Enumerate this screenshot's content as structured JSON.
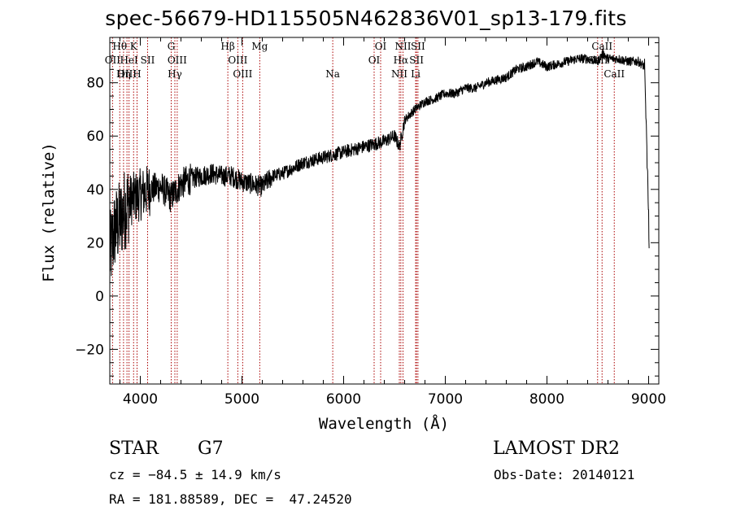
{
  "title": "spec-56679-HD115505N462836V01_sp13-179.fits",
  "footer": {
    "class_label": "STAR",
    "subclass": "G7",
    "survey": "LAMOST DR2",
    "cz": "cz = −84.5 ± 14.9 km/s",
    "obs_date": "Obs-Date: 20140121",
    "coords": "RA = 181.88589, DEC =  47.24520"
  },
  "chart_data": {
    "type": "line",
    "xlabel": "Wavelength (Å)",
    "ylabel": "Flux (relative)",
    "xlim": [
      3700,
      9100
    ],
    "ylim": [
      -33,
      97
    ],
    "x_ticks": [
      4000,
      5000,
      6000,
      7000,
      8000,
      9000
    ],
    "y_ticks": [
      -20,
      0,
      20,
      40,
      60,
      80
    ],
    "grid": false,
    "line_color": "#000000",
    "marker_color": "#aa0000",
    "spectrum_anchors": [
      [
        3700,
        15
      ],
      [
        3750,
        25
      ],
      [
        3800,
        28
      ],
      [
        3850,
        33
      ],
      [
        3900,
        36
      ],
      [
        3950,
        37
      ],
      [
        4000,
        38
      ],
      [
        4100,
        40
      ],
      [
        4200,
        41
      ],
      [
        4300,
        37
      ],
      [
        4400,
        42
      ],
      [
        4500,
        44
      ],
      [
        4600,
        45
      ],
      [
        4700,
        46
      ],
      [
        4800,
        45
      ],
      [
        4900,
        45
      ],
      [
        5000,
        43
      ],
      [
        5100,
        42
      ],
      [
        5200,
        41
      ],
      [
        5300,
        45
      ],
      [
        5400,
        46
      ],
      [
        5500,
        48
      ],
      [
        5600,
        50
      ],
      [
        5700,
        51
      ],
      [
        5800,
        52
      ],
      [
        5900,
        53
      ],
      [
        6000,
        54
      ],
      [
        6100,
        55
      ],
      [
        6200,
        56
      ],
      [
        6300,
        57
      ],
      [
        6400,
        58
      ],
      [
        6500,
        60
      ],
      [
        6550,
        56
      ],
      [
        6600,
        66
      ],
      [
        6700,
        70
      ],
      [
        6800,
        73
      ],
      [
        6900,
        74
      ],
      [
        7000,
        76
      ],
      [
        7100,
        76
      ],
      [
        7200,
        78
      ],
      [
        7300,
        78
      ],
      [
        7400,
        80
      ],
      [
        7500,
        81
      ],
      [
        7600,
        82
      ],
      [
        7700,
        85
      ],
      [
        7800,
        86
      ],
      [
        7900,
        88
      ],
      [
        8000,
        86
      ],
      [
        8100,
        87
      ],
      [
        8200,
        88
      ],
      [
        8300,
        89
      ],
      [
        8400,
        89
      ],
      [
        8500,
        88
      ],
      [
        8550,
        91
      ],
      [
        8600,
        89
      ],
      [
        8700,
        89
      ],
      [
        8800,
        88
      ],
      [
        8900,
        88
      ],
      [
        8960,
        86
      ],
      [
        9000,
        30
      ],
      [
        9005,
        19
      ]
    ],
    "lines": [
      {
        "name": "Hθ",
        "x": 3798,
        "row": 1
      },
      {
        "name": "K",
        "x": 3934,
        "row": 1
      },
      {
        "name": "G",
        "x": 4304,
        "row": 1
      },
      {
        "name": "Hβ",
        "x": 4861,
        "row": 1
      },
      {
        "name": "Mg",
        "x": 5175,
        "row": 1
      },
      {
        "name": "OI",
        "x": 6364,
        "row": 1
      },
      {
        "name": "NII",
        "x": 6584,
        "row": 1
      },
      {
        "name": "SII",
        "x": 6731,
        "row": 1
      },
      {
        "name": "CaII",
        "x": 8542,
        "row": 1
      },
      {
        "name": "OII",
        "x": 3727,
        "row": 2
      },
      {
        "name": "HeI",
        "x": 3889,
        "row": 2
      },
      {
        "name": "SII",
        "x": 4072,
        "row": 2
      },
      {
        "name": "OIII",
        "x": 4363,
        "row": 2
      },
      {
        "name": "OIII",
        "x": 4959,
        "row": 2
      },
      {
        "name": "OI",
        "x": 6300,
        "row": 2
      },
      {
        "name": "Hα",
        "x": 6563,
        "row": 2
      },
      {
        "name": "SII",
        "x": 6717,
        "row": 2
      },
      {
        "name": "CaII",
        "x": 8498,
        "row": 2
      },
      {
        "name": "OIII",
        "x": 3869,
        "row": 3
      },
      {
        "name": "Hη",
        "x": 3835,
        "row": 3
      },
      {
        "name": "H",
        "x": 3968,
        "row": 3
      },
      {
        "name": "Hγ",
        "x": 4340,
        "row": 3
      },
      {
        "name": "OIII",
        "x": 5007,
        "row": 3
      },
      {
        "name": "Na",
        "x": 5893,
        "row": 3
      },
      {
        "name": "NII",
        "x": 6548,
        "row": 3
      },
      {
        "name": "Li",
        "x": 6708,
        "row": 3
      },
      {
        "name": "CaII",
        "x": 8662,
        "row": 3
      }
    ]
  }
}
